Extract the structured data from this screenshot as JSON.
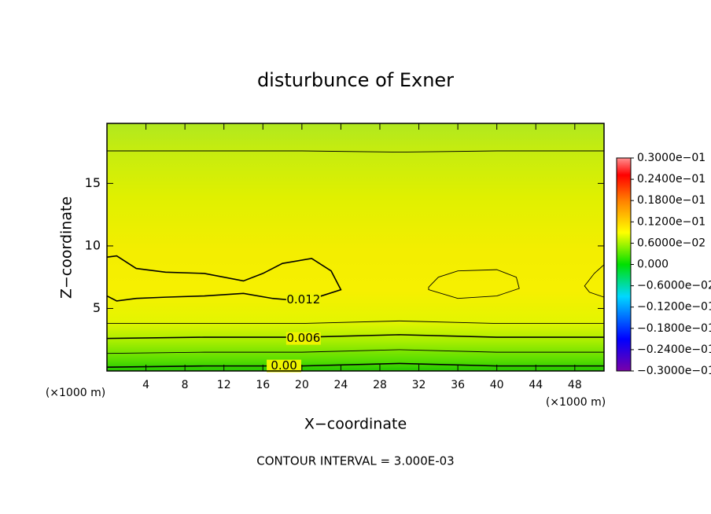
{
  "chart_data": {
    "type": "contour",
    "title": "disturbunce of Exner",
    "xlabel": "X−coordinate",
    "ylabel": "Z−coordinate",
    "x_unit_left": "(×1000 m)",
    "x_unit_right": "(×1000 m)",
    "footer": "CONTOUR INTERVAL = 3.000E-03",
    "xlim": [
      0,
      51
    ],
    "ylim": [
      0,
      19.8
    ],
    "xticks": [
      4,
      8,
      12,
      16,
      20,
      24,
      28,
      32,
      36,
      40,
      44,
      48
    ],
    "yticks": [
      5,
      10,
      15
    ],
    "colorbar_lim": [
      -0.03,
      0.03
    ],
    "colorbar_ticks": [
      {
        "value": 0.03,
        "label": "0.3000e−01"
      },
      {
        "value": 0.024,
        "label": "0.2400e−01"
      },
      {
        "value": 0.018,
        "label": "0.1800e−01"
      },
      {
        "value": 0.012,
        "label": "0.1200e−01"
      },
      {
        "value": 0.006,
        "label": "0.6000e−02"
      },
      {
        "value": 0,
        "label": "0.000"
      },
      {
        "value": -0.006,
        "label": "−0.6000e−02"
      },
      {
        "value": -0.012,
        "label": "−0.1200e−01"
      },
      {
        "value": -0.018,
        "label": "−0.1800e−01"
      },
      {
        "value": -0.024,
        "label": "−0.2400e−01"
      },
      {
        "value": -0.03,
        "label": "−0.3000e−01"
      }
    ],
    "contours": [
      {
        "level": 0.009,
        "x": [
          0,
          10,
          20,
          30,
          40,
          51
        ],
        "y": [
          17.6,
          17.6,
          17.6,
          17.5,
          17.6,
          17.6
        ]
      },
      {
        "level": 0.012,
        "label": "0.012",
        "label_x": 20,
        "label_y": 5.7,
        "x": [
          0,
          1,
          3,
          6,
          10,
          14,
          16,
          18,
          21,
          23,
          24,
          22,
          20,
          17,
          14,
          10,
          6,
          3,
          1,
          0
        ],
        "y": [
          9.1,
          9.2,
          8.2,
          7.9,
          7.8,
          7.2,
          7.8,
          8.6,
          9.0,
          8.0,
          6.5,
          6.0,
          5.6,
          5.8,
          6.2,
          6.0,
          5.9,
          5.8,
          5.6,
          6.0
        ]
      },
      {
        "level": 0.012,
        "x": [
          33,
          34,
          36,
          40,
          42,
          42.3,
          40,
          36,
          33,
          33
        ],
        "y": [
          6.7,
          7.5,
          8.0,
          8.1,
          7.5,
          6.6,
          6.0,
          5.8,
          6.5,
          6.7
        ]
      },
      {
        "level": 0.012,
        "x": [
          51,
          50,
          49,
          49.5,
          51
        ],
        "y": [
          8.5,
          7.8,
          6.8,
          6.3,
          5.9
        ]
      },
      {
        "level": 0.009,
        "x": [
          0,
          10,
          20,
          30,
          40,
          51
        ],
        "y": [
          3.8,
          3.8,
          3.8,
          4.0,
          3.8,
          3.8
        ]
      },
      {
        "level": 0.006,
        "label": "0.006",
        "label_x": 20,
        "label_y": 2.6,
        "x": [
          0,
          10,
          20,
          30,
          40,
          51
        ],
        "y": [
          2.6,
          2.7,
          2.7,
          2.9,
          2.7,
          2.7
        ]
      },
      {
        "level": 0.003,
        "x": [
          0,
          10,
          20,
          30,
          40,
          51
        ],
        "y": [
          1.4,
          1.5,
          1.5,
          1.7,
          1.5,
          1.5
        ]
      },
      {
        "level": 0,
        "label": "0.00",
        "label_x": 18,
        "label_y": 0.4,
        "x": [
          0,
          10,
          20,
          30,
          40,
          51
        ],
        "y": [
          0.3,
          0.4,
          0.4,
          0.6,
          0.4,
          0.4
        ]
      }
    ]
  }
}
